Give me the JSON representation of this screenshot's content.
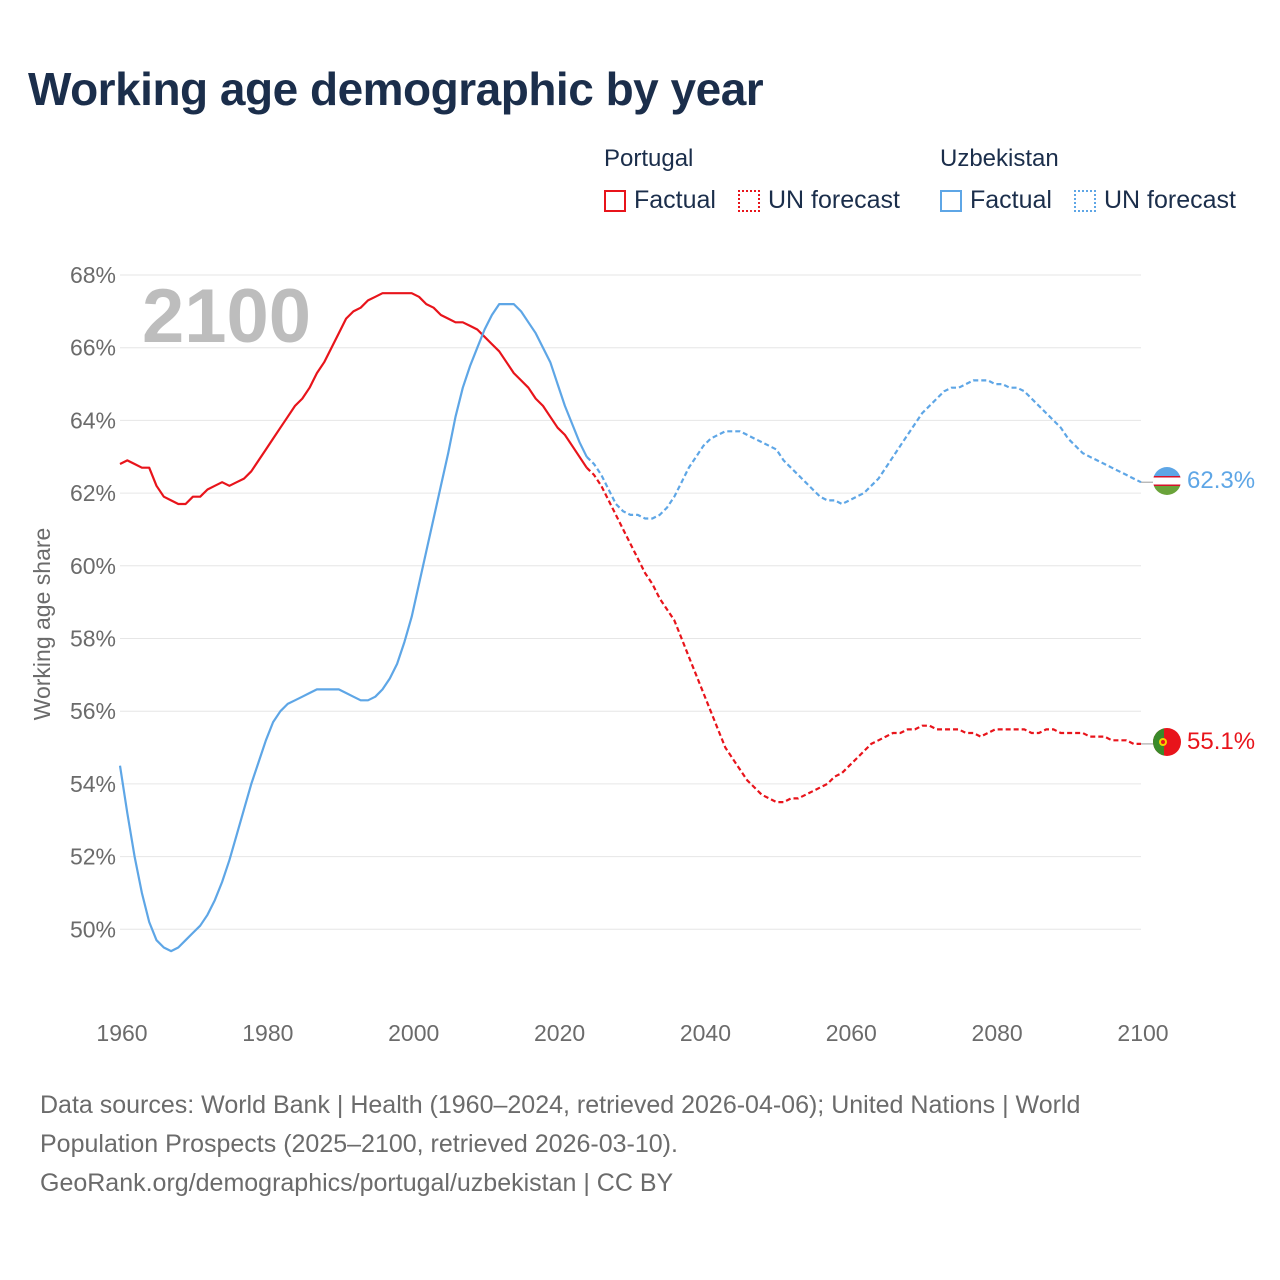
{
  "title": "Working age demographic by year",
  "legend": {
    "groups": [
      {
        "country": "Portugal",
        "color": "#e8141b",
        "factual_label": "Factual",
        "forecast_label": "UN forecast"
      },
      {
        "country": "Uzbekistan",
        "color": "#5ea6e6",
        "factual_label": "Factual",
        "forecast_label": "UN forecast"
      }
    ]
  },
  "year_watermark": "2100",
  "end_labels": {
    "portugal": "55.1%",
    "uzbekistan": "62.3%"
  },
  "footer": {
    "line1": "Data sources: World Bank | Health (1960–2024, retrieved 2026-04-06); United Nations | World",
    "line2": "Population Prospects (2025–2100, retrieved 2026-03-10).",
    "line3": "GeoRank.org/demographics/portugal/uzbekistan | CC BY"
  },
  "chart_data": {
    "type": "line",
    "title": "Working age demographic by year",
    "xlabel": "",
    "ylabel": "Working age share",
    "xlim": [
      1960,
      2100
    ],
    "ylim": [
      48,
      68
    ],
    "x_ticks": [
      1960,
      1980,
      2000,
      2020,
      2040,
      2060,
      2080,
      2100
    ],
    "y_ticks": [
      50,
      52,
      54,
      56,
      58,
      60,
      62,
      64,
      66,
      68
    ],
    "y_tick_labels": [
      "50%",
      "52%",
      "54%",
      "56%",
      "58%",
      "60%",
      "62%",
      "64%",
      "66%",
      "68%"
    ],
    "factual_end_year": 2024,
    "grid": true,
    "series": [
      {
        "name": "Portugal",
        "color": "#e8141b",
        "points": [
          [
            1960,
            62.8
          ],
          [
            1961,
            62.9
          ],
          [
            1962,
            62.8
          ],
          [
            1963,
            62.7
          ],
          [
            1964,
            62.7
          ],
          [
            1965,
            62.2
          ],
          [
            1966,
            61.9
          ],
          [
            1967,
            61.8
          ],
          [
            1968,
            61.7
          ],
          [
            1969,
            61.7
          ],
          [
            1970,
            61.9
          ],
          [
            1971,
            61.9
          ],
          [
            1972,
            62.1
          ],
          [
            1973,
            62.2
          ],
          [
            1974,
            62.3
          ],
          [
            1975,
            62.2
          ],
          [
            1976,
            62.3
          ],
          [
            1977,
            62.4
          ],
          [
            1978,
            62.6
          ],
          [
            1979,
            62.9
          ],
          [
            1980,
            63.2
          ],
          [
            1981,
            63.5
          ],
          [
            1982,
            63.8
          ],
          [
            1983,
            64.1
          ],
          [
            1984,
            64.4
          ],
          [
            1985,
            64.6
          ],
          [
            1986,
            64.9
          ],
          [
            1987,
            65.3
          ],
          [
            1988,
            65.6
          ],
          [
            1989,
            66.0
          ],
          [
            1990,
            66.4
          ],
          [
            1991,
            66.8
          ],
          [
            1992,
            67.0
          ],
          [
            1993,
            67.1
          ],
          [
            1994,
            67.3
          ],
          [
            1995,
            67.4
          ],
          [
            1996,
            67.5
          ],
          [
            1997,
            67.5
          ],
          [
            1998,
            67.5
          ],
          [
            1999,
            67.5
          ],
          [
            2000,
            67.5
          ],
          [
            2001,
            67.4
          ],
          [
            2002,
            67.2
          ],
          [
            2003,
            67.1
          ],
          [
            2004,
            66.9
          ],
          [
            2005,
            66.8
          ],
          [
            2006,
            66.7
          ],
          [
            2007,
            66.7
          ],
          [
            2008,
            66.6
          ],
          [
            2009,
            66.5
          ],
          [
            2010,
            66.3
          ],
          [
            2011,
            66.1
          ],
          [
            2012,
            65.9
          ],
          [
            2013,
            65.6
          ],
          [
            2014,
            65.3
          ],
          [
            2015,
            65.1
          ],
          [
            2016,
            64.9
          ],
          [
            2017,
            64.6
          ],
          [
            2018,
            64.4
          ],
          [
            2019,
            64.1
          ],
          [
            2020,
            63.8
          ],
          [
            2021,
            63.6
          ],
          [
            2022,
            63.3
          ],
          [
            2023,
            63.0
          ],
          [
            2024,
            62.7
          ],
          [
            2025,
            62.5
          ],
          [
            2026,
            62.2
          ],
          [
            2027,
            61.8
          ],
          [
            2028,
            61.4
          ],
          [
            2029,
            61.0
          ],
          [
            2030,
            60.6
          ],
          [
            2031,
            60.2
          ],
          [
            2032,
            59.8
          ],
          [
            2033,
            59.5
          ],
          [
            2034,
            59.1
          ],
          [
            2035,
            58.8
          ],
          [
            2036,
            58.5
          ],
          [
            2037,
            58.0
          ],
          [
            2038,
            57.5
          ],
          [
            2039,
            57.0
          ],
          [
            2040,
            56.5
          ],
          [
            2041,
            56.0
          ],
          [
            2042,
            55.5
          ],
          [
            2043,
            55.0
          ],
          [
            2044,
            54.7
          ],
          [
            2045,
            54.4
          ],
          [
            2046,
            54.1
          ],
          [
            2047,
            53.9
          ],
          [
            2048,
            53.7
          ],
          [
            2049,
            53.6
          ],
          [
            2050,
            53.5
          ],
          [
            2051,
            53.5
          ],
          [
            2052,
            53.6
          ],
          [
            2053,
            53.6
          ],
          [
            2054,
            53.7
          ],
          [
            2055,
            53.8
          ],
          [
            2056,
            53.9
          ],
          [
            2057,
            54.0
          ],
          [
            2058,
            54.2
          ],
          [
            2059,
            54.3
          ],
          [
            2060,
            54.5
          ],
          [
            2061,
            54.7
          ],
          [
            2062,
            54.9
          ],
          [
            2063,
            55.1
          ],
          [
            2064,
            55.2
          ],
          [
            2065,
            55.3
          ],
          [
            2066,
            55.4
          ],
          [
            2067,
            55.4
          ],
          [
            2068,
            55.5
          ],
          [
            2069,
            55.5
          ],
          [
            2070,
            55.6
          ],
          [
            2071,
            55.6
          ],
          [
            2072,
            55.5
          ],
          [
            2073,
            55.5
          ],
          [
            2074,
            55.5
          ],
          [
            2075,
            55.5
          ],
          [
            2076,
            55.4
          ],
          [
            2077,
            55.4
          ],
          [
            2078,
            55.3
          ],
          [
            2079,
            55.4
          ],
          [
            2080,
            55.5
          ],
          [
            2081,
            55.5
          ],
          [
            2082,
            55.5
          ],
          [
            2083,
            55.5
          ],
          [
            2084,
            55.5
          ],
          [
            2085,
            55.4
          ],
          [
            2086,
            55.4
          ],
          [
            2087,
            55.5
          ],
          [
            2088,
            55.5
          ],
          [
            2089,
            55.4
          ],
          [
            2090,
            55.4
          ],
          [
            2091,
            55.4
          ],
          [
            2092,
            55.4
          ],
          [
            2093,
            55.3
          ],
          [
            2094,
            55.3
          ],
          [
            2095,
            55.3
          ],
          [
            2096,
            55.2
          ],
          [
            2097,
            55.2
          ],
          [
            2098,
            55.2
          ],
          [
            2099,
            55.1
          ],
          [
            2100,
            55.1
          ]
        ]
      },
      {
        "name": "Uzbekistan",
        "color": "#5ea6e6",
        "points": [
          [
            1960,
            54.5
          ],
          [
            1961,
            53.2
          ],
          [
            1962,
            52.0
          ],
          [
            1963,
            51.0
          ],
          [
            1964,
            50.2
          ],
          [
            1965,
            49.7
          ],
          [
            1966,
            49.5
          ],
          [
            1967,
            49.4
          ],
          [
            1968,
            49.5
          ],
          [
            1969,
            49.7
          ],
          [
            1970,
            49.9
          ],
          [
            1971,
            50.1
          ],
          [
            1972,
            50.4
          ],
          [
            1973,
            50.8
          ],
          [
            1974,
            51.3
          ],
          [
            1975,
            51.9
          ],
          [
            1976,
            52.6
          ],
          [
            1977,
            53.3
          ],
          [
            1978,
            54.0
          ],
          [
            1979,
            54.6
          ],
          [
            1980,
            55.2
          ],
          [
            1981,
            55.7
          ],
          [
            1982,
            56.0
          ],
          [
            1983,
            56.2
          ],
          [
            1984,
            56.3
          ],
          [
            1985,
            56.4
          ],
          [
            1986,
            56.5
          ],
          [
            1987,
            56.6
          ],
          [
            1988,
            56.6
          ],
          [
            1989,
            56.6
          ],
          [
            1990,
            56.6
          ],
          [
            1991,
            56.5
          ],
          [
            1992,
            56.4
          ],
          [
            1993,
            56.3
          ],
          [
            1994,
            56.3
          ],
          [
            1995,
            56.4
          ],
          [
            1996,
            56.6
          ],
          [
            1997,
            56.9
          ],
          [
            1998,
            57.3
          ],
          [
            1999,
            57.9
          ],
          [
            2000,
            58.6
          ],
          [
            2001,
            59.5
          ],
          [
            2002,
            60.4
          ],
          [
            2003,
            61.3
          ],
          [
            2004,
            62.2
          ],
          [
            2005,
            63.1
          ],
          [
            2006,
            64.1
          ],
          [
            2007,
            64.9
          ],
          [
            2008,
            65.5
          ],
          [
            2009,
            66.0
          ],
          [
            2010,
            66.5
          ],
          [
            2011,
            66.9
          ],
          [
            2012,
            67.2
          ],
          [
            2013,
            67.2
          ],
          [
            2014,
            67.2
          ],
          [
            2015,
            67.0
          ],
          [
            2016,
            66.7
          ],
          [
            2017,
            66.4
          ],
          [
            2018,
            66.0
          ],
          [
            2019,
            65.6
          ],
          [
            2020,
            65.0
          ],
          [
            2021,
            64.4
          ],
          [
            2022,
            63.9
          ],
          [
            2023,
            63.4
          ],
          [
            2024,
            63.0
          ],
          [
            2025,
            62.8
          ],
          [
            2026,
            62.5
          ],
          [
            2027,
            62.1
          ],
          [
            2028,
            61.7
          ],
          [
            2029,
            61.5
          ],
          [
            2030,
            61.4
          ],
          [
            2031,
            61.4
          ],
          [
            2032,
            61.3
          ],
          [
            2033,
            61.3
          ],
          [
            2034,
            61.4
          ],
          [
            2035,
            61.6
          ],
          [
            2036,
            61.9
          ],
          [
            2037,
            62.3
          ],
          [
            2038,
            62.7
          ],
          [
            2039,
            63.0
          ],
          [
            2040,
            63.3
          ],
          [
            2041,
            63.5
          ],
          [
            2042,
            63.6
          ],
          [
            2043,
            63.7
          ],
          [
            2044,
            63.7
          ],
          [
            2045,
            63.7
          ],
          [
            2046,
            63.6
          ],
          [
            2047,
            63.5
          ],
          [
            2048,
            63.4
          ],
          [
            2049,
            63.3
          ],
          [
            2050,
            63.2
          ],
          [
            2051,
            62.9
          ],
          [
            2052,
            62.7
          ],
          [
            2053,
            62.5
          ],
          [
            2054,
            62.3
          ],
          [
            2055,
            62.1
          ],
          [
            2056,
            61.9
          ],
          [
            2057,
            61.8
          ],
          [
            2058,
            61.8
          ],
          [
            2059,
            61.7
          ],
          [
            2060,
            61.8
          ],
          [
            2061,
            61.9
          ],
          [
            2062,
            62.0
          ],
          [
            2063,
            62.2
          ],
          [
            2064,
            62.4
          ],
          [
            2065,
            62.7
          ],
          [
            2066,
            63.0
          ],
          [
            2067,
            63.3
          ],
          [
            2068,
            63.6
          ],
          [
            2069,
            63.9
          ],
          [
            2070,
            64.2
          ],
          [
            2071,
            64.4
          ],
          [
            2072,
            64.6
          ],
          [
            2073,
            64.8
          ],
          [
            2074,
            64.9
          ],
          [
            2075,
            64.9
          ],
          [
            2076,
            65.0
          ],
          [
            2077,
            65.1
          ],
          [
            2078,
            65.1
          ],
          [
            2079,
            65.1
          ],
          [
            2080,
            65.0
          ],
          [
            2081,
            65.0
          ],
          [
            2082,
            64.9
          ],
          [
            2083,
            64.9
          ],
          [
            2084,
            64.8
          ],
          [
            2085,
            64.6
          ],
          [
            2086,
            64.4
          ],
          [
            2087,
            64.2
          ],
          [
            2088,
            64.0
          ],
          [
            2089,
            63.8
          ],
          [
            2090,
            63.5
          ],
          [
            2091,
            63.3
          ],
          [
            2092,
            63.1
          ],
          [
            2093,
            63.0
          ],
          [
            2094,
            62.9
          ],
          [
            2095,
            62.8
          ],
          [
            2096,
            62.7
          ],
          [
            2097,
            62.6
          ],
          [
            2098,
            62.5
          ],
          [
            2099,
            62.4
          ],
          [
            2100,
            62.3
          ]
        ]
      }
    ]
  }
}
